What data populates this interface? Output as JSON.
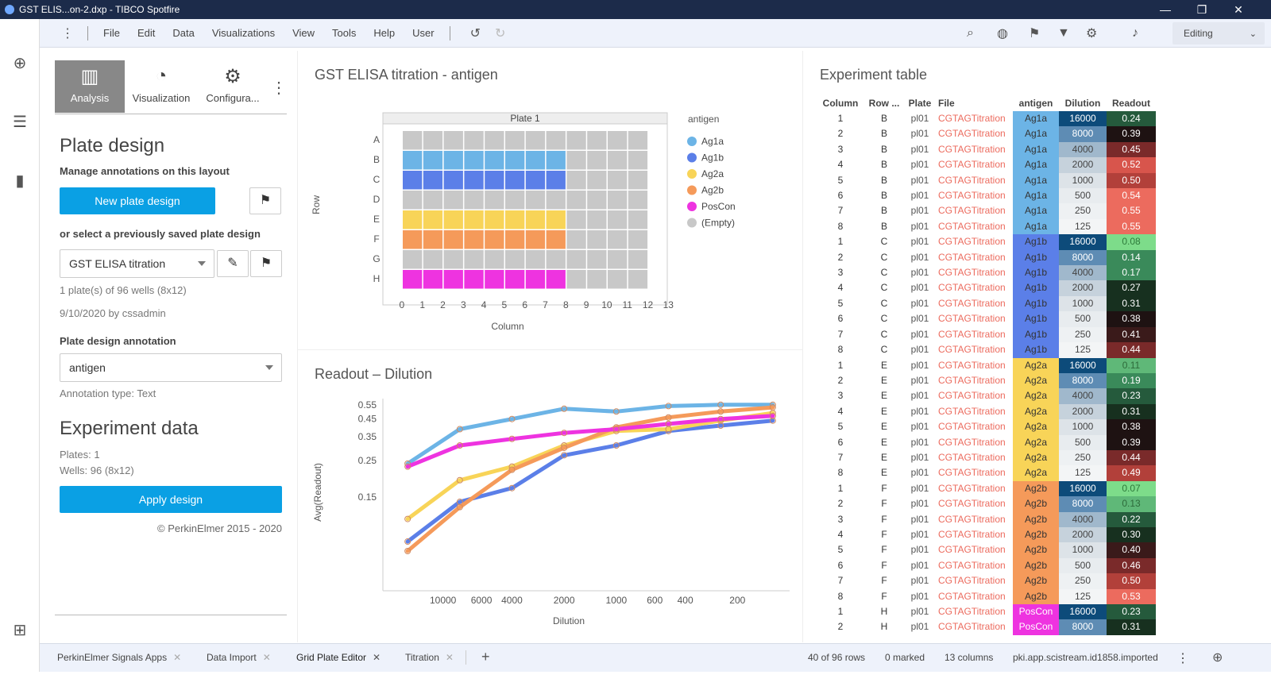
{
  "window": {
    "title": "GST ELIS...on-2.dxp - TIBCO Spotfire"
  },
  "menu": {
    "items": [
      "File",
      "Edit",
      "Data",
      "Visualizations",
      "View",
      "Tools",
      "Help",
      "User"
    ],
    "mode": "Editing"
  },
  "panel": {
    "tabs": [
      "Analysis",
      "Visualization",
      "Configura..."
    ],
    "plate_design_title": "Plate design",
    "manage_label": "Manage annotations on this layout",
    "new_button": "New plate design",
    "select_label": "or select a previously saved plate design",
    "saved_design": "GST ELISA titration",
    "plates_info": "1 plate(s) of 96 wells (8x12)",
    "date_info": "9/10/2020 by cssadmin",
    "annotation_label": "Plate design annotation",
    "annotation_value": "antigen",
    "annotation_type": "Annotation type: Text",
    "experiment_title": "Experiment data",
    "plates": "Plates: 1",
    "wells": "Wells: 96 (8x12)",
    "apply_button": "Apply design",
    "copyright": "© PerkinElmer 2015 - 2020"
  },
  "plate_viz": {
    "title": "GST ELISA titration - antigen",
    "plate_label": "Plate 1",
    "rows": [
      "A",
      "B",
      "C",
      "D",
      "E",
      "F",
      "G",
      "H"
    ],
    "columns": [
      "0",
      "1",
      "2",
      "3",
      "4",
      "5",
      "6",
      "7",
      "8",
      "9",
      "10",
      "11",
      "12",
      "13"
    ],
    "xlabel": "Column",
    "ylabel": "Row",
    "legend_title": "antigen",
    "legend": [
      {
        "name": "Ag1a",
        "color": "#6cb4e6"
      },
      {
        "name": "Ag1b",
        "color": "#5b7fe8"
      },
      {
        "name": "Ag2a",
        "color": "#f8d458"
      },
      {
        "name": "Ag2b",
        "color": "#f59a5a"
      },
      {
        "name": "PosCon",
        "color": "#ee33e0"
      },
      {
        "name": "(Empty)",
        "color": "#c8c8c8"
      }
    ],
    "row_assign": [
      "(Empty)",
      "Ag1a",
      "Ag1b",
      "(Empty)",
      "Ag2a",
      "Ag2b",
      "(Empty)",
      "PosCon"
    ]
  },
  "chart_data": {
    "type": "line",
    "title": "Readout – Dilution",
    "xlabel": "Dilution",
    "ylabel": "Avg(Readout)",
    "x": [
      16000,
      8000,
      4000,
      2000,
      1000,
      500,
      250,
      125
    ],
    "x_ticks": [
      "10000",
      "6000",
      "4000",
      "2000",
      "1000",
      "600",
      "400",
      "200"
    ],
    "y_ticks": [
      "0.55",
      "0.45",
      "0.35",
      "0.25",
      "0.15"
    ],
    "ylim": [
      0.04,
      0.6
    ],
    "series": [
      {
        "name": "Ag1a",
        "color": "#6cb4e6",
        "values": [
          0.24,
          0.39,
          0.45,
          0.52,
          0.5,
          0.54,
          0.55,
          0.55
        ]
      },
      {
        "name": "Ag1b",
        "color": "#5b7fe8",
        "values": [
          0.08,
          0.14,
          0.17,
          0.27,
          0.31,
          0.38,
          0.41,
          0.44
        ]
      },
      {
        "name": "Ag2a",
        "color": "#f8d458",
        "values": [
          0.11,
          0.19,
          0.23,
          0.31,
          0.38,
          0.39,
          0.44,
          0.49
        ]
      },
      {
        "name": "Ag2b",
        "color": "#f59a5a",
        "values": [
          0.07,
          0.13,
          0.22,
          0.3,
          0.4,
          0.46,
          0.5,
          0.53
        ]
      },
      {
        "name": "PosCon",
        "color": "#ee33e0",
        "values": [
          0.23,
          0.31,
          0.34,
          0.37,
          0.39,
          0.42,
          0.45,
          0.47
        ]
      }
    ]
  },
  "table": {
    "title": "Experiment table",
    "headers": [
      "Column",
      "Row ...",
      "Plate",
      "File",
      "antigen",
      "Dilution",
      "Readout"
    ],
    "rows": [
      [
        "1",
        "B",
        "pl01",
        "CGTAGTitration",
        "Ag1a",
        "16000",
        "0.24"
      ],
      [
        "2",
        "B",
        "pl01",
        "CGTAGTitration",
        "Ag1a",
        "8000",
        "0.39"
      ],
      [
        "3",
        "B",
        "pl01",
        "CGTAGTitration",
        "Ag1a",
        "4000",
        "0.45"
      ],
      [
        "4",
        "B",
        "pl01",
        "CGTAGTitration",
        "Ag1a",
        "2000",
        "0.52"
      ],
      [
        "5",
        "B",
        "pl01",
        "CGTAGTitration",
        "Ag1a",
        "1000",
        "0.50"
      ],
      [
        "6",
        "B",
        "pl01",
        "CGTAGTitration",
        "Ag1a",
        "500",
        "0.54"
      ],
      [
        "7",
        "B",
        "pl01",
        "CGTAGTitration",
        "Ag1a",
        "250",
        "0.55"
      ],
      [
        "8",
        "B",
        "pl01",
        "CGTAGTitration",
        "Ag1a",
        "125",
        "0.55"
      ],
      [
        "1",
        "C",
        "pl01",
        "CGTAGTitration",
        "Ag1b",
        "16000",
        "0.08"
      ],
      [
        "2",
        "C",
        "pl01",
        "CGTAGTitration",
        "Ag1b",
        "8000",
        "0.14"
      ],
      [
        "3",
        "C",
        "pl01",
        "CGTAGTitration",
        "Ag1b",
        "4000",
        "0.17"
      ],
      [
        "4",
        "C",
        "pl01",
        "CGTAGTitration",
        "Ag1b",
        "2000",
        "0.27"
      ],
      [
        "5",
        "C",
        "pl01",
        "CGTAGTitration",
        "Ag1b",
        "1000",
        "0.31"
      ],
      [
        "6",
        "C",
        "pl01",
        "CGTAGTitration",
        "Ag1b",
        "500",
        "0.38"
      ],
      [
        "7",
        "C",
        "pl01",
        "CGTAGTitration",
        "Ag1b",
        "250",
        "0.41"
      ],
      [
        "8",
        "C",
        "pl01",
        "CGTAGTitration",
        "Ag1b",
        "125",
        "0.44"
      ],
      [
        "1",
        "E",
        "pl01",
        "CGTAGTitration",
        "Ag2a",
        "16000",
        "0.11"
      ],
      [
        "2",
        "E",
        "pl01",
        "CGTAGTitration",
        "Ag2a",
        "8000",
        "0.19"
      ],
      [
        "3",
        "E",
        "pl01",
        "CGTAGTitration",
        "Ag2a",
        "4000",
        "0.23"
      ],
      [
        "4",
        "E",
        "pl01",
        "CGTAGTitration",
        "Ag2a",
        "2000",
        "0.31"
      ],
      [
        "5",
        "E",
        "pl01",
        "CGTAGTitration",
        "Ag2a",
        "1000",
        "0.38"
      ],
      [
        "6",
        "E",
        "pl01",
        "CGTAGTitration",
        "Ag2a",
        "500",
        "0.39"
      ],
      [
        "7",
        "E",
        "pl01",
        "CGTAGTitration",
        "Ag2a",
        "250",
        "0.44"
      ],
      [
        "8",
        "E",
        "pl01",
        "CGTAGTitration",
        "Ag2a",
        "125",
        "0.49"
      ],
      [
        "1",
        "F",
        "pl01",
        "CGTAGTitration",
        "Ag2b",
        "16000",
        "0.07"
      ],
      [
        "2",
        "F",
        "pl01",
        "CGTAGTitration",
        "Ag2b",
        "8000",
        "0.13"
      ],
      [
        "3",
        "F",
        "pl01",
        "CGTAGTitration",
        "Ag2b",
        "4000",
        "0.22"
      ],
      [
        "4",
        "F",
        "pl01",
        "CGTAGTitration",
        "Ag2b",
        "2000",
        "0.30"
      ],
      [
        "5",
        "F",
        "pl01",
        "CGTAGTitration",
        "Ag2b",
        "1000",
        "0.40"
      ],
      [
        "6",
        "F",
        "pl01",
        "CGTAGTitration",
        "Ag2b",
        "500",
        "0.46"
      ],
      [
        "7",
        "F",
        "pl01",
        "CGTAGTitration",
        "Ag2b",
        "250",
        "0.50"
      ],
      [
        "8",
        "F",
        "pl01",
        "CGTAGTitration",
        "Ag2b",
        "125",
        "0.53"
      ],
      [
        "1",
        "H",
        "pl01",
        "CGTAGTitration",
        "PosCon",
        "16000",
        "0.23"
      ],
      [
        "2",
        "H",
        "pl01",
        "CGTAGTitration",
        "PosCon",
        "8000",
        "0.31"
      ]
    ]
  },
  "status": {
    "tabs": [
      "PerkinElmer Signals Apps",
      "Data Import",
      "Grid Plate Editor",
      "Titration"
    ],
    "rows_info": "40 of 96 rows",
    "marked": "0 marked",
    "columns": "13 columns",
    "source": "pki.app.scistream.id1858.imported"
  }
}
